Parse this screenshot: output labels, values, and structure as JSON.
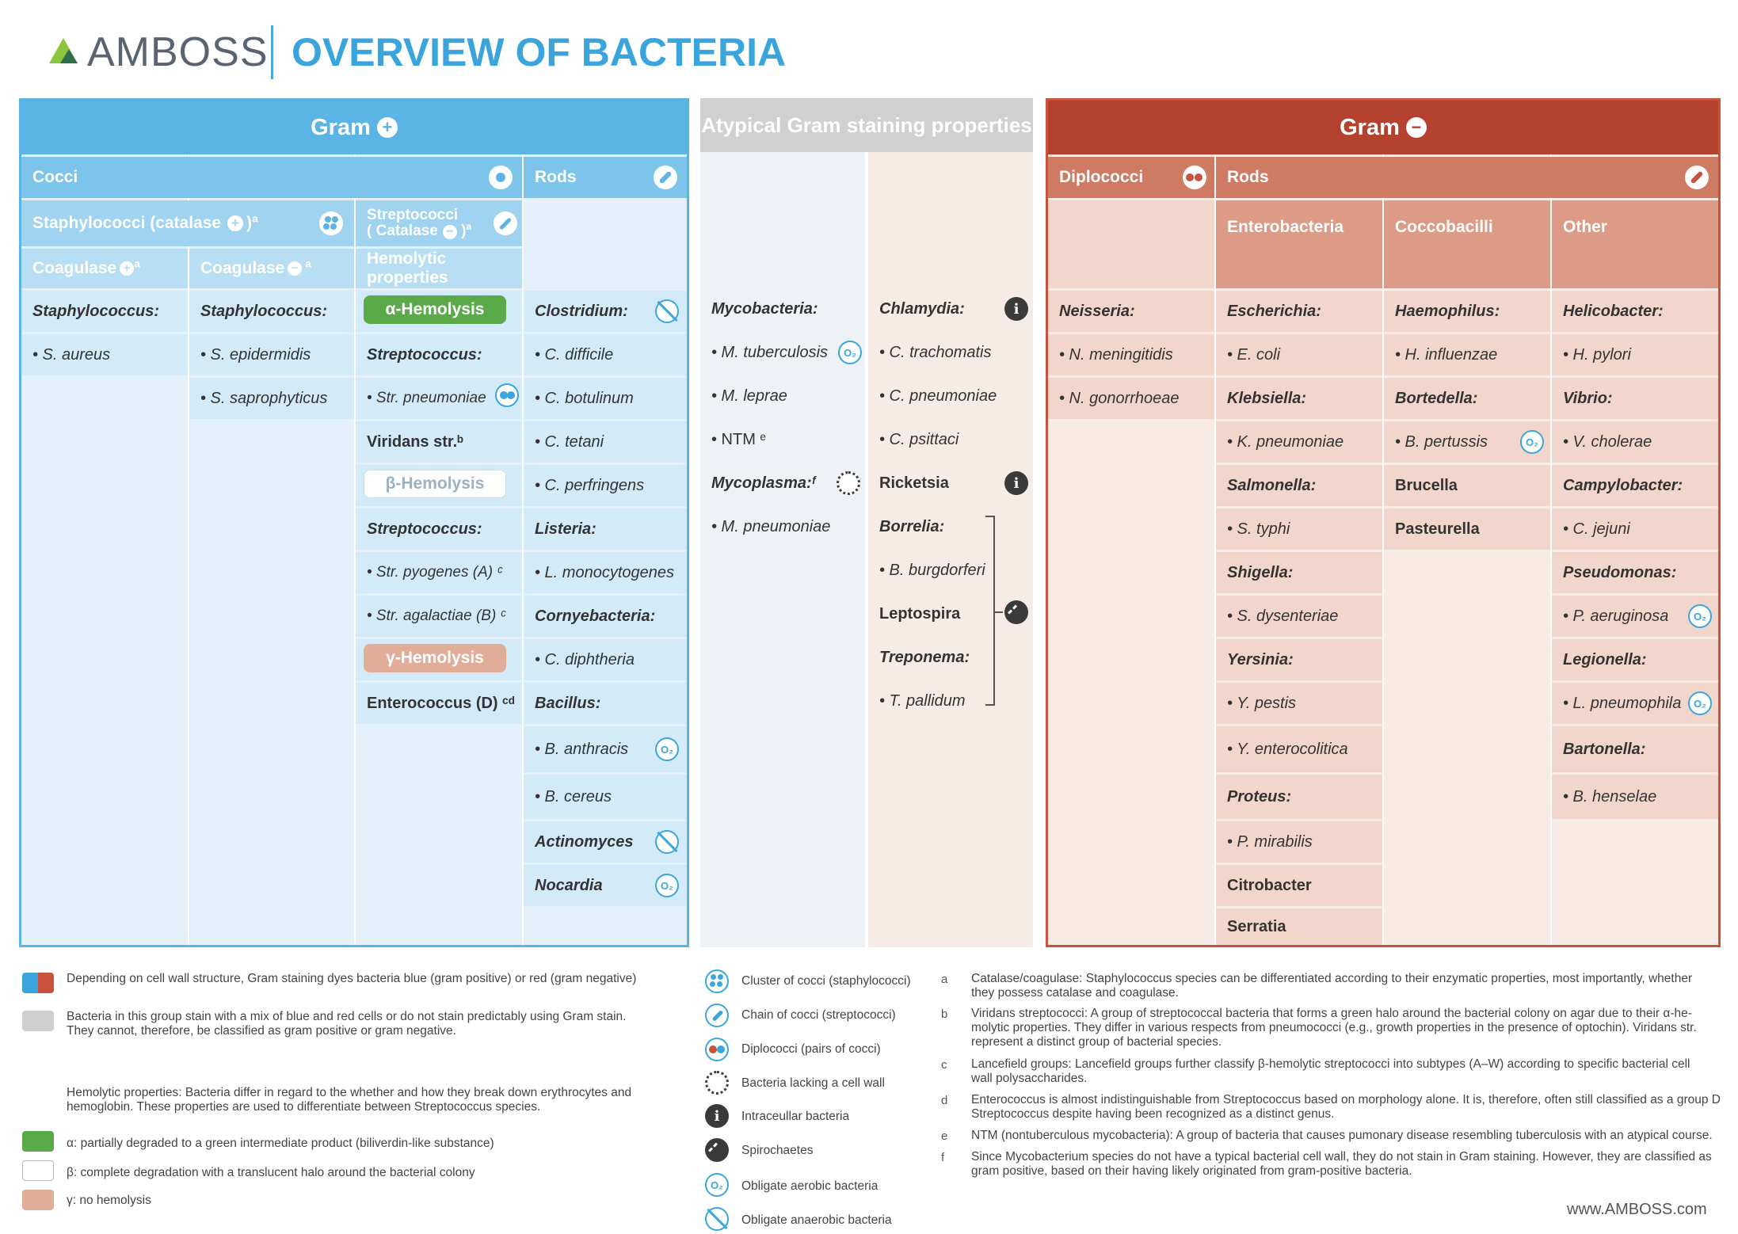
{
  "header": {
    "brand": "AMBOSS",
    "title": "OVERVIEW OF BACTERIA"
  },
  "gram_pos": {
    "title": "Gram",
    "cocci": "Cocci",
    "rods": "Rods",
    "staph": "Staphylococci (catalase",
    "staph_sup": ")ª",
    "strep_l1": "Streptococci",
    "strep_l2": "( Catalase",
    "strep_sup": ")ª",
    "coag_pos": "Coagulase",
    "coag_pos_sup": "ª",
    "coag_neg": "Coagulase",
    "coag_neg_sup": "ª",
    "hemolytic": "Hemolytic properties",
    "col1": [
      "Staphylococcus:",
      "• S. aureus"
    ],
    "col2": [
      "Staphylococcus:",
      "• S. epidermidis",
      "• S. saprophyticus"
    ],
    "alpha": "α-Hemolysis",
    "beta": "β-Hemolysis",
    "gamma": "γ-Hemolysis",
    "col3_a": [
      "Streptococcus:",
      "• Str. pneumoniae",
      "Viridans str.ᵇ"
    ],
    "col3_b": [
      "Streptococcus:",
      "• Str. pyogenes (A) ᶜ",
      "• Str. agalactiae (B) ᶜ"
    ],
    "col3_c": "Enterococcus (D) ᶜᵈ",
    "col4": [
      "Clostridium:",
      "• C. difficile",
      "• C. botulinum",
      "• C. tetani",
      "• C. perfringens",
      "Listeria:",
      "• L. monocytogenes",
      "Cornyebacteria:",
      "• C. diphtheria",
      "Bacillus:",
      "• B. anthracis",
      "• B. cereus",
      "Actinomyces",
      "Nocardia"
    ]
  },
  "atypical": {
    "title": "Atypical Gram staining properties",
    "col1": [
      "Mycobacteria:",
      "• M. tuberculosis",
      "• M. leprae",
      "• NTM ᵉ",
      "Mycoplasma:ᶠ",
      "• M. pneumoniae"
    ],
    "col2": [
      "Chlamydia:",
      "• C. trachomatis",
      "• C. pneumoniae",
      "• C. psittaci",
      "Ricketsia",
      "Borrelia:",
      "• B. burgdorferi",
      "Leptospira",
      "Treponema:",
      "• T. pallidum"
    ]
  },
  "gram_neg": {
    "title": "Gram",
    "diplococci": "Diplococci",
    "rods": "Rods",
    "entero": "Enterobacteria",
    "cocco": "Coccobacilli",
    "other": "Other",
    "col1": [
      "Neisseria:",
      "• N. meningitidis",
      "• N. gonorrhoeae"
    ],
    "col2": [
      "Escherichia:",
      "• E. coli",
      "Klebsiella:",
      "• K. pneumoniae",
      "Salmonella:",
      "• S. typhi",
      "Shigella:",
      "• S. dysenteriae",
      "Yersinia:",
      "• Y. pestis",
      "• Y. enterocolitica",
      "Proteus:",
      "• P. mirabilis",
      "Citrobacter",
      "Serratia"
    ],
    "col3": [
      "Haemophilus:",
      "• H. influenzae",
      "Bortedella:",
      "• B. pertussis",
      "Brucella",
      "Pasteurella"
    ],
    "col4": [
      "Helicobacter:",
      "• H. pylori",
      "Vibrio:",
      "• V. cholerae",
      "Campylobacter:",
      "• C. jejuni",
      "Pseudomonas:",
      "• P. aeruginosa",
      "Legionella:",
      "• L. pneumophila",
      "Bartonella:",
      "• B. henselae"
    ]
  },
  "legend": {
    "gram": "Depending on cell wall structure, Gram staining dyes bacteria blue (gram positive) or red (gram negative)",
    "gray_l1": "Bacteria in this group stain with a mix of blue and red cells or do not stain predictably using Gram stain.",
    "gray_l2": "They cannot, therefore, be classified as gram positive or gram negative.",
    "hemo_l1": "Hemolytic properties: Bacteria differ in regard to the whether and how they break down erythrocytes and",
    "hemo_l2": "hemoglobin. These properties are used to differentiate between Streptococcus species.",
    "alpha": "α: partially degraded to a green intermediate product (biliverdin-like substance)",
    "beta": "β: complete degradation with a translucent halo around the bacterial colony",
    "gamma": "γ: no hemolysis",
    "icons": [
      "Cluster of cocci (staphylococci)",
      "Chain of cocci (streptococci)",
      "Diplococci (pairs of cocci)",
      "Bacteria lacking a cell wall",
      "Intraceullar bacteria",
      "Spirochaetes",
      "Obligate aerobic bacteria",
      "Obligate anaerobic bacteria"
    ],
    "icon_names": [
      "cluster-icon",
      "chain-icon",
      "diplococci-icon",
      "no-cell-wall-icon",
      "intracellular-icon",
      "spirochaete-icon",
      "aerobic-icon",
      "anaerobic-icon"
    ]
  },
  "footnotes": [
    {
      "letter": "a",
      "l1": "Catalase/coagulase: Staphylococcus species can be differentiated according to their enzymatic properties, most importantly, whether",
      "l2": "they possess catalase and coagulase."
    },
    {
      "letter": "b",
      "l1": "Viridans streptococci: A group of streptococcal bacteria that forms a green halo around the bacterial colony on agar due to their α-he-",
      "l2": "molytic properties. They differ in various respects from pneumococci (e.g., growth properties in the presence of optochin). Viridans str.",
      "l3": "represent a distinct group of bacterial species."
    },
    {
      "letter": "c",
      "l1": "Lancefield groups: Lancefield groups further classify β-hemolytic streptococci into subtypes (A–W) according to specific bacterial cell",
      "l2": "wall polysaccharides."
    },
    {
      "letter": "d",
      "l1": "Enterococcus is almost indistinguishable from Streptococcus based on morphology alone. It is, therefore, often still classified as a group D",
      "l2": "Streptococcus despite having been recognized as a distinct genus."
    },
    {
      "letter": "e",
      "l1": "NTM (nontuberculous mycobacteria): A group of bacteria that causes pumonary disease resembling tuberculosis with an atypical course."
    },
    {
      "letter": "f",
      "l1": "Since Mycobacterium species do not have a typical bacterial cell wall, they do not stain in Gram staining. However, they are classified as",
      "l2": "gram positive, based on their having likely originated from gram-positive bacteria."
    }
  ],
  "url": "www.AMBOSS.com",
  "colors": {
    "blue": "#5bb4e5",
    "blue_light": "#e4f1fa",
    "red": "#c8523d",
    "red_light": "#f3dcd3",
    "gray": "#cfcfcf"
  }
}
